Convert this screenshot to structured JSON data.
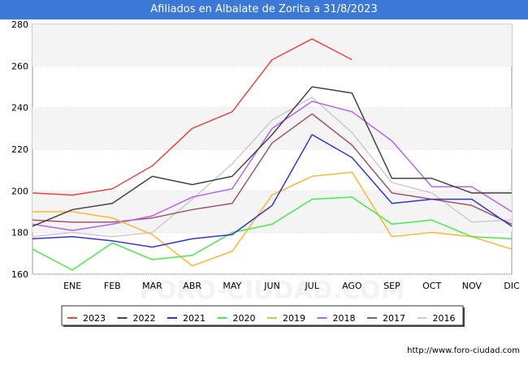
{
  "chart_data": {
    "type": "line",
    "title": "Afiliados en Albalate de Zorita a 31/8/2023",
    "categories": [
      "",
      "ENE",
      "FEB",
      "MAR",
      "ABR",
      "MAY",
      "JUN",
      "JUL",
      "AGO",
      "SEP",
      "OCT",
      "NOV",
      "DIC"
    ],
    "ylim": [
      160,
      280
    ],
    "yticks": [
      160,
      180,
      200,
      220,
      240,
      260,
      280
    ],
    "grid": true,
    "legend_position": "bottom",
    "watermark": "FORO-CIUDAD.COM",
    "source": "http://www.foro-ciudad.com",
    "series": [
      {
        "name": "2016",
        "color": "#cccccc",
        "values": [
          178,
          180,
          178,
          180,
          196,
          213,
          234,
          245,
          228,
          204,
          199,
          185,
          186
        ]
      },
      {
        "name": "2017",
        "color": "#a0566a",
        "values": [
          186,
          185,
          185,
          187,
          191,
          194,
          223,
          237,
          222,
          199,
          196,
          193,
          184
        ]
      },
      {
        "name": "2018",
        "color": "#b565f0",
        "values": [
          184,
          181,
          184,
          188,
          197,
          201,
          230,
          243,
          238,
          224,
          202,
          202,
          190
        ]
      },
      {
        "name": "2019",
        "color": "#ffb733",
        "values": [
          190,
          190,
          187,
          179,
          164,
          171,
          198,
          207,
          209,
          178,
          180,
          178,
          172
        ]
      },
      {
        "name": "2020",
        "color": "#44ee44",
        "values": [
          172,
          162,
          175,
          167,
          169,
          180,
          184,
          196,
          197,
          184,
          186,
          178,
          177
        ]
      },
      {
        "name": "2021",
        "color": "#3333dd",
        "values": [
          177,
          178,
          176,
          173,
          177,
          179,
          193,
          227,
          216,
          194,
          196,
          196,
          183
        ]
      },
      {
        "name": "2022",
        "color": "#444444",
        "values": [
          183,
          191,
          194,
          207,
          203,
          207,
          227,
          250,
          247,
          206,
          206,
          199,
          199
        ]
      },
      {
        "name": "2023",
        "color": "#ee4444",
        "values": [
          199,
          198,
          201,
          212,
          230,
          238,
          263,
          273,
          263,
          null,
          null,
          null,
          null
        ]
      }
    ],
    "legend_order": [
      "2023",
      "2022",
      "2021",
      "2020",
      "2019",
      "2018",
      "2017",
      "2016"
    ]
  }
}
